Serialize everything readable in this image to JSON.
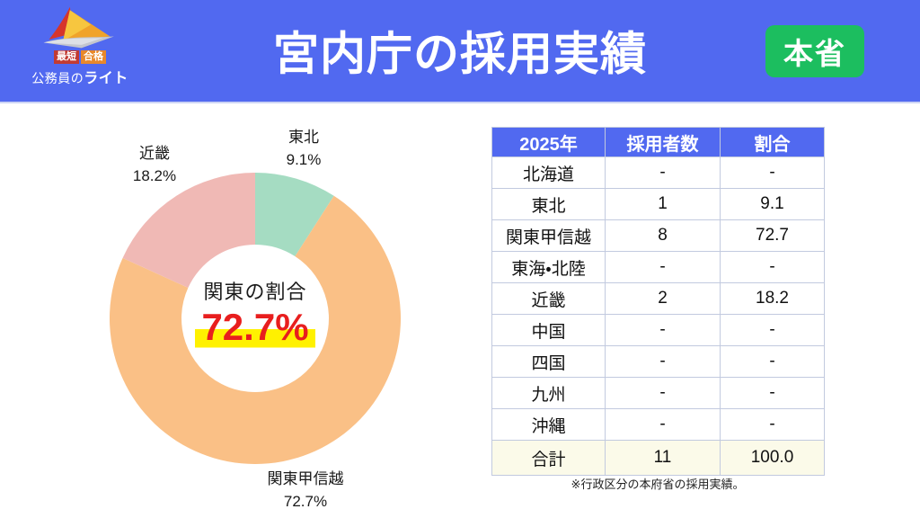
{
  "header": {
    "title": "宮内庁の採用実績",
    "badge": "本省",
    "logo": {
      "tagline_left": "最短",
      "tagline_right": "合格",
      "brand_normal": "公務員の",
      "brand_bold": "ライト"
    },
    "colors": {
      "header_bg": "#5169F0",
      "badge_bg": "#1CBE5F",
      "tagline_left_bg": "#C23B32",
      "tagline_right_bg": "#E8882B"
    }
  },
  "chart_data": {
    "type": "pie",
    "subtype": "donut",
    "start_angle_deg": 0,
    "direction": "clockwise",
    "donut_hole_ratio": 0.506,
    "center_label": "関東の割合",
    "center_value": "72.7%",
    "center_value_color": "#E81E1E",
    "center_highlight_color": "#FFF100",
    "segments": [
      {
        "label": "東北",
        "value": 9.1,
        "display": "9.1%",
        "color": "#A5DCC2"
      },
      {
        "label": "関東甲信越",
        "value": 72.7,
        "display": "72.7%",
        "color": "#FAC086"
      },
      {
        "label": "近畿",
        "value": 18.2,
        "display": "18.2%",
        "color": "#F0B9B5"
      }
    ]
  },
  "table": {
    "headers": [
      "2025年",
      "採用者数",
      "割合"
    ],
    "header_bg": "#5169F0",
    "total_row_bg": "#FBFAE9",
    "rows": [
      [
        "北海道",
        "-",
        "-"
      ],
      [
        "東北",
        "1",
        "9.1"
      ],
      [
        "関東甲信越",
        "8",
        "72.7"
      ],
      [
        "東海・北陸",
        "-",
        "-"
      ],
      [
        "近畿",
        "2",
        "18.2"
      ],
      [
        "中国",
        "-",
        "-"
      ],
      [
        "四国",
        "-",
        "-"
      ],
      [
        "九州",
        "-",
        "-"
      ],
      [
        "沖縄",
        "-",
        "-"
      ]
    ],
    "total_row": [
      "合計",
      "11",
      "100.0"
    ]
  },
  "footnote": "※行政区分の本府省の採用実績。"
}
